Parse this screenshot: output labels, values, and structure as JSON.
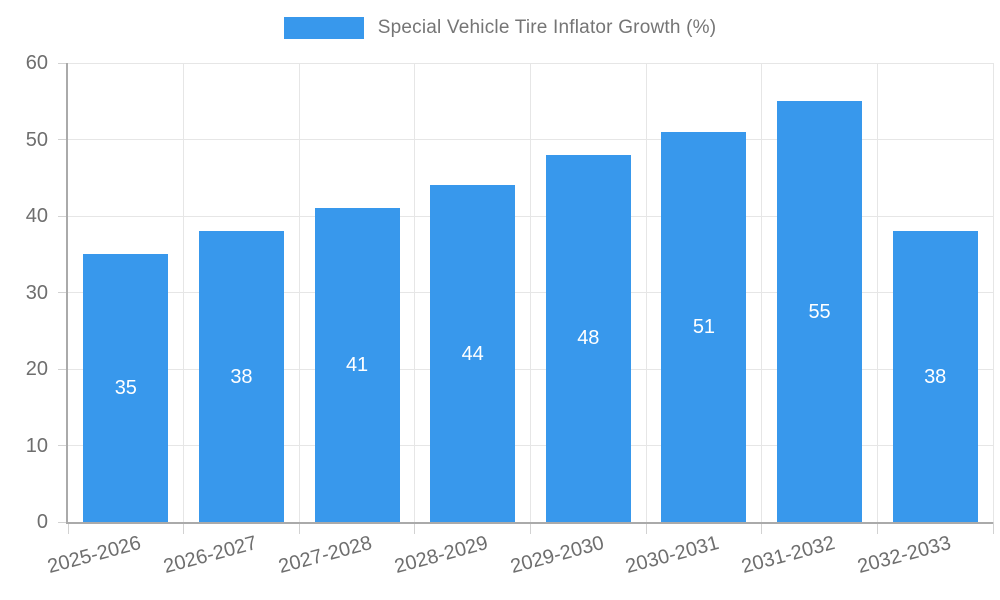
{
  "chart_data": {
    "type": "bar",
    "title": "Special Vehicle Tire Inflator Growth (%)",
    "legend_position": "top",
    "categories": [
      "2025-2026",
      "2026-2027",
      "2027-2028",
      "2028-2029",
      "2029-2030",
      "2030-2031",
      "2031-2032",
      "2032-2033"
    ],
    "values": [
      35,
      38,
      41,
      44,
      48,
      51,
      55,
      38
    ],
    "value_labels": [
      "35",
      "38",
      "41",
      "44",
      "48",
      "51",
      "55",
      "38"
    ],
    "value_label_position": "inside-center",
    "xlabel": "",
    "ylabel": "",
    "ylim": [
      0,
      60
    ],
    "yticks": [
      0,
      10,
      20,
      30,
      40,
      50,
      60
    ],
    "ytick_labels": [
      "0",
      "10",
      "20",
      "30",
      "40",
      "50",
      "60"
    ],
    "grid": "on",
    "colors": {
      "bar": "#3898ec",
      "grid": "#e6e6e6",
      "tick": "#d2d2d2",
      "axis_line": "#aaaaaa",
      "axis_text": "#6e6e6e",
      "title_text": "#757575",
      "value_text": "#ffffff",
      "background": "#ffffff"
    }
  }
}
